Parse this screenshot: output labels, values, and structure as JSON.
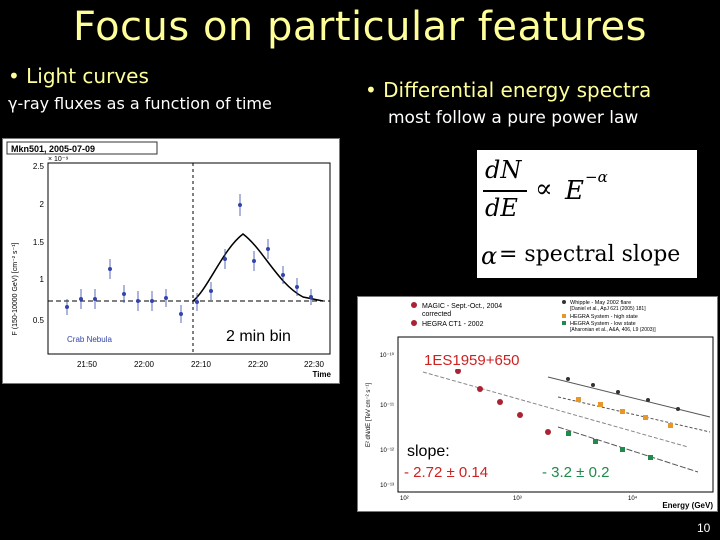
{
  "title": "Focus on particular features",
  "left": {
    "bullet": "• Light curves",
    "subtitle": "γ-ray fluxes as a function of time"
  },
  "right": {
    "bullet": "• Differential energy spectra",
    "subtitle": "most follow a pure power law"
  },
  "equation": {
    "lhs_num": "dN",
    "lhs_den": "dE",
    "prop": "∝",
    "rhs": "E",
    "rhs_exp": "−α",
    "alpha": "α",
    "eq_text": "= spectral slope"
  },
  "lightcurve": {
    "header": "Mkn501, 2005-07-09",
    "exponent": "× 10⁻⁹",
    "ylabel": "F (150-10000 GeV) [cm⁻² s⁻¹]",
    "xlabel": "Time",
    "xticks": [
      "21:50",
      "22:00",
      "22:10",
      "22:20",
      "22:30"
    ],
    "yticks": [
      "0.5",
      "1",
      "1.5",
      "2",
      "2.5"
    ],
    "crab_label": "Crab Nebula",
    "bin_label": "2 min bin"
  },
  "spectrum": {
    "legend_left": [
      "MAGIC - Sept.-Oct., 2004",
      "corrected",
      "HEGRA CT1 - 2002"
    ],
    "legend_right": [
      "Whipple - May 2002 flare",
      "[Daniel et al., ApJ 621 (2005) 181]",
      "HEGRA System - high state",
      "HEGRA System - low state",
      "[Aharonian et al., A&A, 406, L9 (2003)]"
    ],
    "source": "1ES1959+650",
    "slope_label": "slope:",
    "slope1": "- 2.72 ± 0.14",
    "slope2": "- 3.2 ± 0.2",
    "xlabel": "Energy (GeV)",
    "ylabel": "E² dN/dE [TeV cm⁻² s⁻¹]",
    "xticks": [
      "10²",
      "10³",
      "10⁴"
    ],
    "yticks": [
      "10⁻¹⁰",
      "10⁻¹¹",
      "10⁻¹²",
      "10⁻¹³"
    ]
  },
  "slide_number": "10",
  "colors": {
    "title_yellow": "#ffff99",
    "slope_red": "#cc2222",
    "magic_red": "#aa2233",
    "hegra_orange": "#e8962a",
    "hegra_green": "#1f8a4a"
  }
}
